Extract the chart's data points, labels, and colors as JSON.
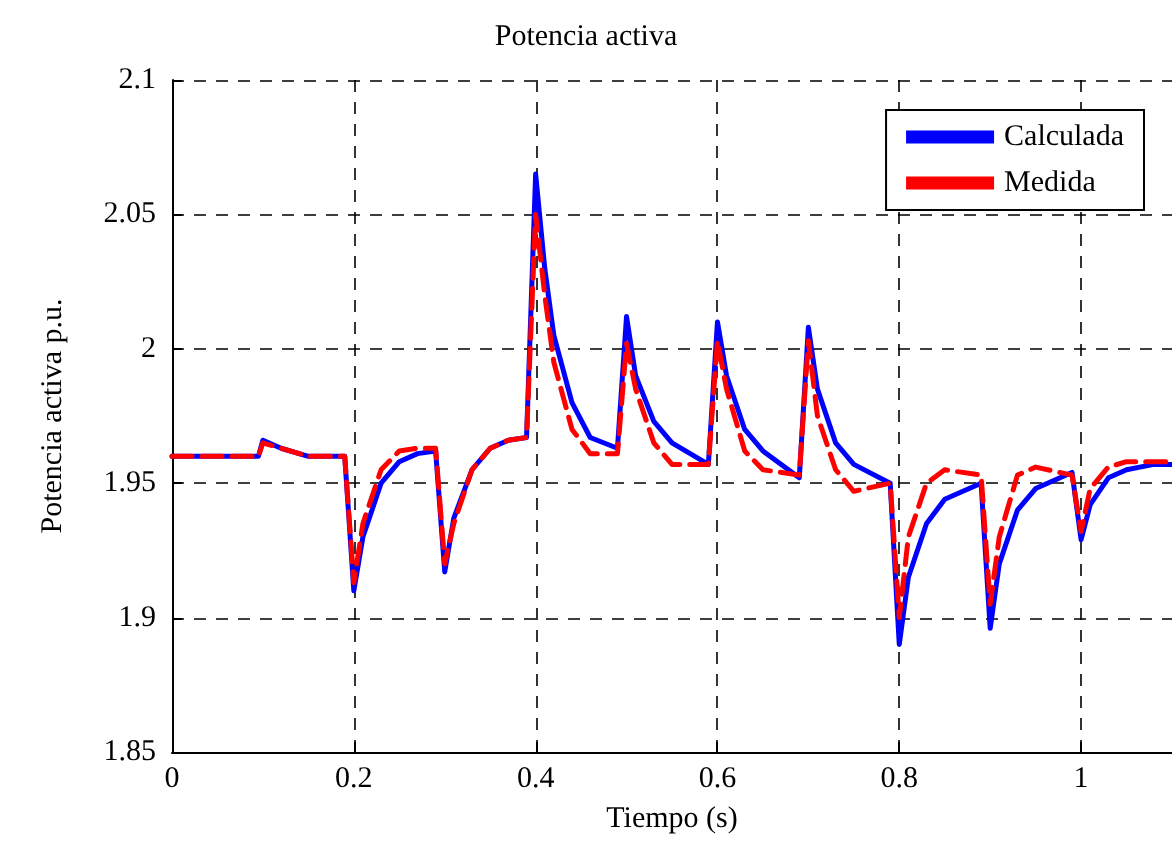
{
  "chart_data": {
    "type": "line",
    "title": "Potencia activa",
    "xlabel": "Tiempo (s)",
    "ylabel": "Potencia activa p.u.",
    "xlim": [
      0,
      1.1
    ],
    "xticks": [
      0,
      0.2,
      0.4,
      0.6,
      0.8,
      1
    ],
    "ylim": [
      1.85,
      2.1
    ],
    "yticks": [
      1.85,
      1.9,
      1.95,
      2,
      2.05,
      2.1
    ],
    "grid": true,
    "legend": "top right",
    "marker": "none",
    "series": [
      {
        "name": "Calculada",
        "color": "#0000ff",
        "line_style": "solid",
        "x": [
          0,
          0.095,
          0.1,
          0.12,
          0.15,
          0.19,
          0.2,
          0.21,
          0.23,
          0.25,
          0.27,
          0.29,
          0.3,
          0.31,
          0.33,
          0.35,
          0.37,
          0.39,
          0.4,
          0.41,
          0.42,
          0.44,
          0.46,
          0.49,
          0.5,
          0.51,
          0.53,
          0.55,
          0.59,
          0.6,
          0.61,
          0.63,
          0.65,
          0.69,
          0.7,
          0.71,
          0.73,
          0.75,
          0.79,
          0.8,
          0.81,
          0.83,
          0.85,
          0.89,
          0.9,
          0.91,
          0.93,
          0.95,
          0.99,
          1,
          1.01,
          1.03,
          1.05,
          1.08,
          1.1
        ],
        "values": [
          1.96,
          1.96,
          1.966,
          1.963,
          1.96,
          1.96,
          1.91,
          1.93,
          1.95,
          1.958,
          1.961,
          1.962,
          1.917,
          1.937,
          1.955,
          1.963,
          1.966,
          1.967,
          2.065,
          2.03,
          2.005,
          1.98,
          1.967,
          1.963,
          2.012,
          1.99,
          1.973,
          1.965,
          1.957,
          2.01,
          1.99,
          1.97,
          1.962,
          1.952,
          2.008,
          1.985,
          1.965,
          1.957,
          1.95,
          1.89,
          1.915,
          1.935,
          1.944,
          1.95,
          1.896,
          1.92,
          1.94,
          1.948,
          1.954,
          1.929,
          1.942,
          1.952,
          1.955,
          1.957,
          1.957
        ]
      },
      {
        "name": "Medida",
        "color": "#ff0000",
        "line_style": "dashed",
        "x": [
          0,
          0.095,
          0.1,
          0.12,
          0.15,
          0.19,
          0.2,
          0.21,
          0.23,
          0.25,
          0.27,
          0.29,
          0.3,
          0.31,
          0.33,
          0.35,
          0.37,
          0.39,
          0.4,
          0.41,
          0.42,
          0.44,
          0.46,
          0.49,
          0.5,
          0.51,
          0.53,
          0.55,
          0.59,
          0.6,
          0.61,
          0.63,
          0.65,
          0.69,
          0.7,
          0.71,
          0.73,
          0.75,
          0.79,
          0.8,
          0.81,
          0.83,
          0.85,
          0.89,
          0.9,
          0.91,
          0.93,
          0.95,
          0.99,
          1,
          1.01,
          1.03,
          1.05,
          1.08,
          1.1
        ],
        "values": [
          1.96,
          1.96,
          1.965,
          1.963,
          1.96,
          1.96,
          1.913,
          1.935,
          1.955,
          1.962,
          1.963,
          1.963,
          1.92,
          1.935,
          1.955,
          1.963,
          1.966,
          1.967,
          2.05,
          2.02,
          1.995,
          1.97,
          1.961,
          1.961,
          2.002,
          1.985,
          1.965,
          1.957,
          1.957,
          2.003,
          1.985,
          1.962,
          1.955,
          1.953,
          2.003,
          1.975,
          1.955,
          1.947,
          1.95,
          1.9,
          1.93,
          1.95,
          1.955,
          1.953,
          1.905,
          1.93,
          1.953,
          1.956,
          1.953,
          1.932,
          1.948,
          1.956,
          1.958,
          1.958,
          1.958
        ]
      }
    ]
  }
}
